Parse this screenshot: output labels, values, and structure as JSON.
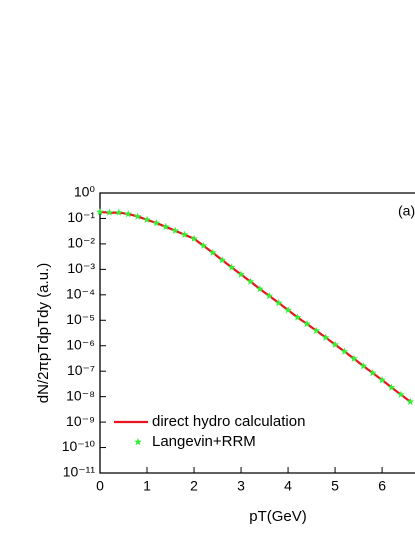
{
  "chart_data": {
    "type": "line",
    "xlabel": "pT(GeV)",
    "ylabel": "dN/2πpTdpTdy (a.u.)",
    "annotation": "(a)",
    "x": [
      0,
      0.2,
      0.4,
      0.6,
      0.8,
      1.0,
      1.2,
      1.4,
      1.6,
      1.8,
      2.0,
      2.2,
      2.4,
      2.6,
      2.8,
      3.0,
      3.2,
      3.4,
      3.6,
      3.8,
      4.0,
      4.2,
      4.4,
      4.6,
      4.8,
      5.0,
      5.2,
      5.4,
      5.6,
      5.8,
      6.0,
      6.2,
      6.4,
      6.6
    ],
    "series": [
      {
        "name": "direct hydro calculation",
        "color": "#e8141e",
        "kind": "line",
        "values": [
          0.18,
          0.17,
          0.17,
          0.15,
          0.12,
          0.089,
          0.066,
          0.047,
          0.033,
          0.023,
          0.016,
          0.0085,
          0.0045,
          0.0023,
          0.0012,
          0.00063,
          0.00033,
          0.00017,
          9.1e-05,
          4.8e-05,
          2.5e-05,
          1.3e-05,
          7.2e-06,
          3.9e-06,
          2.1e-06,
          1.1e-06,
          5.9e-07,
          3.1e-07,
          1.6e-07,
          8.5e-08,
          4.5e-08,
          2.3e-08,
          1.2e-08,
          6.3e-09
        ]
      },
      {
        "name": "Langevin+RRM",
        "color": "#33ee33",
        "kind": "scatter",
        "values": [
          0.18,
          0.17,
          0.17,
          0.15,
          0.12,
          0.089,
          0.066,
          0.047,
          0.033,
          0.023,
          0.016,
          0.0085,
          0.0045,
          0.0023,
          0.0012,
          0.00063,
          0.00033,
          0.00017,
          9.1e-05,
          4.8e-05,
          2.5e-05,
          1.3e-05,
          7.2e-06,
          3.9e-06,
          2.1e-06,
          1.1e-06,
          5.9e-07,
          3.1e-07,
          1.6e-07,
          8.5e-08,
          4.5e-08,
          2.3e-08,
          1.2e-08,
          6.3e-09
        ]
      }
    ],
    "xlim": [
      0,
      6.7
    ],
    "xticks": [
      0,
      1,
      2,
      3,
      4,
      5,
      6
    ],
    "ylim": [
      1e-11,
      1
    ],
    "log_y": true,
    "yticks": [
      {
        "value": 1,
        "label": "10⁰"
      },
      {
        "value": 0.1,
        "label": "10⁻¹"
      },
      {
        "value": 0.01,
        "label": "10⁻²"
      },
      {
        "value": 0.001,
        "label": "10⁻³"
      },
      {
        "value": 0.0001,
        "label": "10⁻⁴"
      },
      {
        "value": 1e-05,
        "label": "10⁻⁵"
      },
      {
        "value": 1e-06,
        "label": "10⁻⁶"
      },
      {
        "value": 1e-07,
        "label": "10⁻⁷"
      },
      {
        "value": 1e-08,
        "label": "10⁻⁸"
      },
      {
        "value": 1e-09,
        "label": "10⁻⁹"
      },
      {
        "value": 1e-10,
        "label": "10⁻¹⁰"
      },
      {
        "value": 1e-11,
        "label": "10⁻¹¹"
      }
    ],
    "legend": "lower left"
  }
}
